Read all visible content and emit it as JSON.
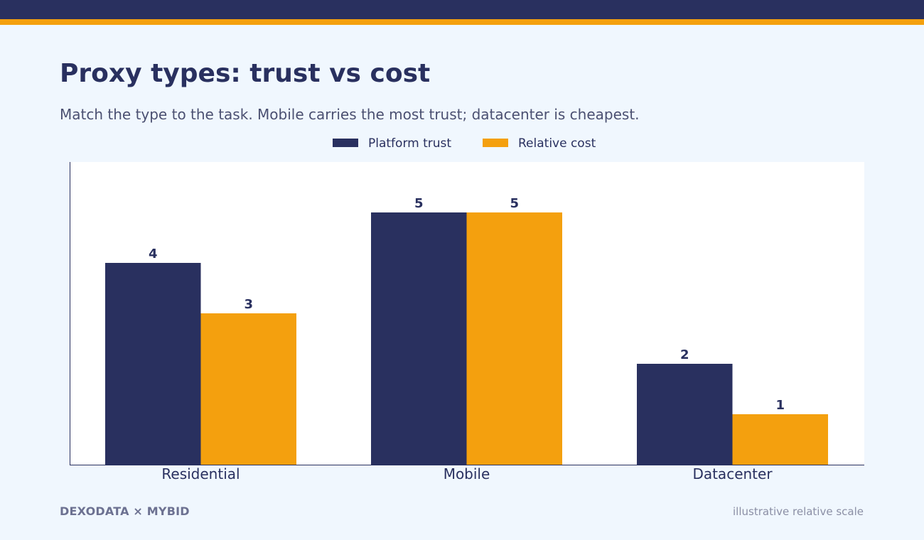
{
  "header": {
    "title": "Proxy types: trust vs cost",
    "subtitle": "Match the type to the task. Mobile carries the most trust; datacenter is cheapest."
  },
  "footer": {
    "brand": "DEXODATA  ×  MYBID",
    "note": "illustrative relative scale"
  },
  "colors": {
    "navy": "#29305f",
    "orange": "#f4a00e",
    "page_background": "#f0f7fe",
    "plot_background": "#ffffff"
  },
  "chart_data": {
    "type": "bar",
    "categories": [
      "Residential",
      "Mobile",
      "Datacenter"
    ],
    "series": [
      {
        "name": "Platform trust",
        "values": [
          4,
          5,
          2
        ],
        "color": "#29305f"
      },
      {
        "name": "Relative cost",
        "values": [
          3,
          5,
          1
        ],
        "color": "#f4a00e"
      }
    ],
    "title": "",
    "xlabel": "",
    "ylabel": "",
    "ylim": [
      0,
      6
    ],
    "grid": false,
    "legend": "top-center",
    "data_labels": true
  }
}
